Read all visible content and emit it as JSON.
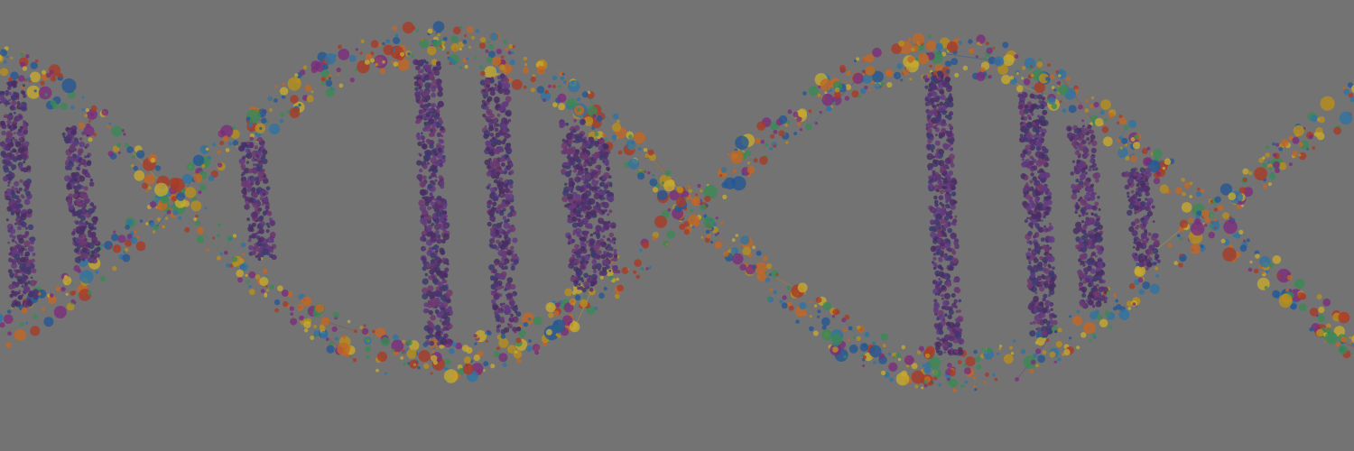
{
  "banner": {
    "subject": "dna-double-helix",
    "palette": {
      "background": "#7f7f7f",
      "rung": [
        "#5b2d7a",
        "#6a3b8f",
        "#3e3a7a",
        "#4a2a6a",
        "#7a3a7a"
      ],
      "backbone": [
        "#c23b22",
        "#d4a017",
        "#2e7fb8",
        "#3b9a5b",
        "#e0701f",
        "#8a2a8a",
        "#1f5fa8",
        "#e5c22a"
      ]
    }
  }
}
